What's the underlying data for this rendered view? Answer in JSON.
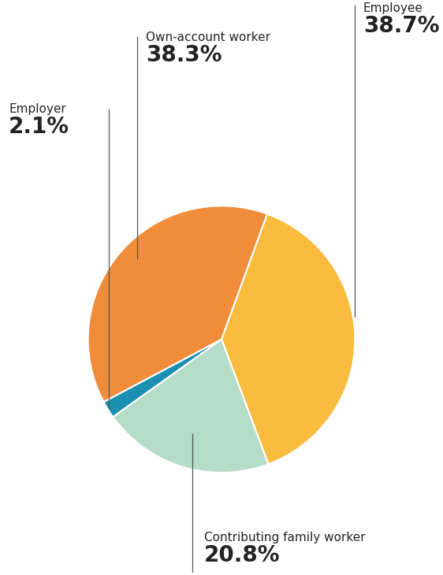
{
  "chart_data": {
    "type": "pie",
    "categories": [
      "Employee",
      "Contributing family worker",
      "Employer",
      "Own-account worker"
    ],
    "values": [
      38.7,
      20.8,
      2.1,
      38.3
    ],
    "value_labels": [
      "38.7%",
      "20.8%",
      "2.1%",
      "38.3%"
    ],
    "colors": [
      "#f9bc3f",
      "#b5dcc8",
      "#1a8fb0",
      "#f08c3a"
    ],
    "data_labels": true
  }
}
